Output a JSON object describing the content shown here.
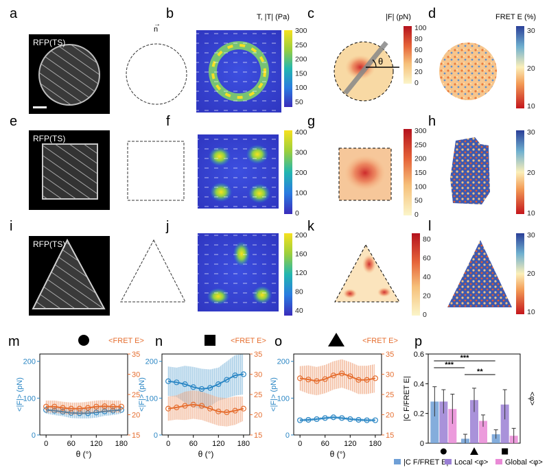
{
  "panel_letters": [
    "a",
    "b",
    "c",
    "d",
    "e",
    "f",
    "g",
    "h",
    "i",
    "j",
    "k",
    "l",
    "m",
    "n",
    "o",
    "p"
  ],
  "labels": {
    "rfp": "RFP(TS)",
    "director": "n",
    "traction_title": "T, |T| (Pa)",
    "force_title": "|F| (pN)",
    "fret_title": "FRET E (%)",
    "theta": "θ",
    "fret_axis": "<FRET E>",
    "force_axis": "<|F|> (pN)",
    "theta_axis": "θ (°)",
    "phi_axis": "<φ>",
    "corr_axis": "|C F/FRET E|"
  },
  "colorbars": {
    "traction_a": [
      "300",
      "250",
      "200",
      "150",
      "100",
      "50"
    ],
    "traction_b": [
      "400",
      "300",
      "200",
      "100",
      "0"
    ],
    "traction_c": [
      "200",
      "160",
      "120",
      "80",
      "40"
    ],
    "force_a": [
      "100",
      "80",
      "60",
      "40",
      "20",
      "0"
    ],
    "force_b": [
      "300",
      "250",
      "200",
      "150",
      "100",
      "50",
      "0"
    ],
    "force_c": [
      "80",
      "60",
      "40",
      "20",
      "0"
    ],
    "fret": [
      "30",
      "20",
      "10"
    ]
  },
  "chart_data": [
    {
      "panel": "m",
      "shape": "circle",
      "type": "line",
      "xlabel": "θ (°)",
      "ylabel": "<|F|> (pN)",
      "y2label": "<FRET E>",
      "xticks": [
        0,
        60,
        120,
        180
      ],
      "yticks": [
        0,
        100,
        200
      ],
      "y2ticks": [
        15,
        20,
        25,
        30,
        35
      ],
      "xlim": [
        -15,
        195
      ],
      "ylim": [
        0,
        220
      ],
      "y2lim": [
        15,
        35
      ],
      "series": [
        {
          "name": "<|F|>",
          "axis": "left",
          "color": "#2a86c4",
          "x": [
            0,
            20,
            40,
            60,
            80,
            100,
            120,
            140,
            160,
            180
          ],
          "values": [
            68,
            66,
            63,
            60,
            59,
            59,
            61,
            64,
            66,
            68
          ],
          "err": [
            10,
            12,
            12,
            14,
            14,
            14,
            14,
            12,
            12,
            10
          ]
        },
        {
          "name": "<FRET E>",
          "axis": "right",
          "color": "#e56d2e",
          "x": [
            0,
            20,
            40,
            60,
            80,
            100,
            120,
            140,
            160,
            180
          ],
          "values": [
            22,
            22,
            21.7,
            21.5,
            21.5,
            21.7,
            22,
            22.1,
            22,
            22
          ],
          "err": [
            1.5,
            1.5,
            1.5,
            1.5,
            1.5,
            1.5,
            1.5,
            1.5,
            1.5,
            1.5
          ]
        }
      ]
    },
    {
      "panel": "n",
      "shape": "square",
      "type": "line",
      "xlabel": "θ (°)",
      "ylabel": "<|F|> (pN)",
      "y2label": "<FRET E>",
      "xticks": [
        0,
        60,
        120,
        180
      ],
      "yticks": [
        0,
        100,
        200
      ],
      "y2ticks": [
        15,
        20,
        25,
        30,
        35
      ],
      "xlim": [
        -15,
        195
      ],
      "ylim": [
        0,
        220
      ],
      "y2lim": [
        15,
        35
      ],
      "series": [
        {
          "name": "<|F|>",
          "axis": "left",
          "color": "#2a86c4",
          "x": [
            0,
            20,
            40,
            60,
            80,
            100,
            120,
            140,
            160,
            180
          ],
          "values": [
            146,
            143,
            138,
            130,
            125,
            128,
            138,
            150,
            162,
            165
          ],
          "err": [
            40,
            40,
            50,
            55,
            55,
            50,
            45,
            50,
            55,
            55
          ]
        },
        {
          "name": "<FRET E>",
          "axis": "right",
          "color": "#e56d2e",
          "x": [
            0,
            20,
            40,
            60,
            80,
            100,
            120,
            140,
            160,
            180
          ],
          "values": [
            21.5,
            21.8,
            22.2,
            22.5,
            22.2,
            21.5,
            20.8,
            20.6,
            21,
            21.5
          ],
          "err": [
            3,
            3,
            3.5,
            3.5,
            3.5,
            3.5,
            3.5,
            3.5,
            3.5,
            3
          ]
        }
      ]
    },
    {
      "panel": "o",
      "shape": "triangle",
      "type": "line",
      "xlabel": "θ (°)",
      "ylabel": "<|F|> (pN)",
      "y2label": "<FRET E>",
      "xticks": [
        0,
        60,
        120,
        180
      ],
      "yticks": [
        0,
        100,
        200
      ],
      "y2ticks": [
        15,
        20,
        25,
        30,
        35
      ],
      "xlim": [
        -15,
        195
      ],
      "ylim": [
        0,
        220
      ],
      "y2lim": [
        15,
        35
      ],
      "series": [
        {
          "name": "<|F|>",
          "axis": "left",
          "color": "#2a86c4",
          "x": [
            0,
            20,
            40,
            60,
            80,
            100,
            120,
            140,
            160,
            180
          ],
          "values": [
            40,
            41,
            43,
            46,
            48,
            46,
            43,
            41,
            40,
            40
          ],
          "err": [
            4,
            4,
            4,
            4,
            4,
            4,
            4,
            4,
            4,
            4
          ]
        },
        {
          "name": "<FRET E>",
          "axis": "right",
          "color": "#e56d2e",
          "x": [
            0,
            20,
            40,
            60,
            80,
            100,
            120,
            140,
            160,
            180
          ],
          "values": [
            29,
            28.7,
            28.3,
            28.8,
            29.7,
            30.2,
            29.5,
            28.6,
            28.6,
            29
          ],
          "err": [
            3,
            3.5,
            3.5,
            3.5,
            3.5,
            3.5,
            3.5,
            3.5,
            3.5,
            3.5
          ]
        }
      ]
    },
    {
      "panel": "p",
      "type": "bar",
      "ylabel": "|C F/FRET E|",
      "y2label": "<φ>",
      "yticks": [
        0,
        0.2,
        0.4,
        0.6
      ],
      "ylim": [
        0,
        0.6
      ],
      "categories": [
        "circle",
        "triangle",
        "square"
      ],
      "series": [
        {
          "name": "|C F/FRET E|",
          "color": "#6f9fd6",
          "values": [
            0.28,
            0.03,
            0.06
          ],
          "err": [
            0.1,
            0.03,
            0.03
          ]
        },
        {
          "name": "Local <φ>",
          "color": "#9a7fd4",
          "values": [
            0.28,
            0.29,
            0.26
          ],
          "err": [
            0.08,
            0.08,
            0.1
          ]
        },
        {
          "name": "Global <φ>",
          "color": "#e98ad6",
          "values": [
            0.23,
            0.15,
            0.05
          ],
          "err": [
            0.1,
            0.04,
            0.05
          ]
        }
      ],
      "significance": [
        {
          "label": "***",
          "from": 0,
          "to": 2
        },
        {
          "label": "***",
          "from": 0,
          "to": 1
        },
        {
          "label": "**",
          "from": 1,
          "to": 2
        }
      ],
      "legend": [
        "|C F/FRET E|",
        "Local <φ>",
        "Global <φ>"
      ]
    }
  ]
}
